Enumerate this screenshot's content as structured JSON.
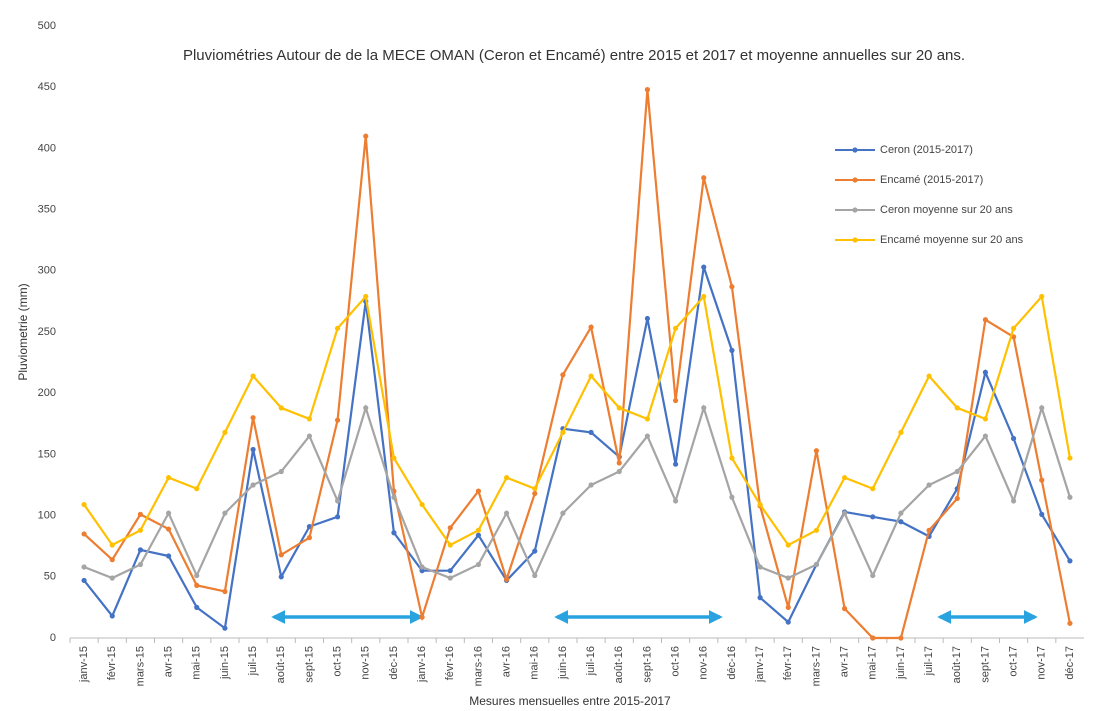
{
  "chart_data": {
    "type": "line",
    "title": "Pluviométries Autour de de la MECE OMAN (Ceron et Encamé) entre 2015 et 2017 et moyenne annuelles sur 20 ans.",
    "x_label": "Mesures mensuelles entre 2015-2017",
    "y_label": "Pluviometrie (mm)",
    "categories": [
      "janv-15",
      "févr-15",
      "mars-15",
      "avr-15",
      "mai-15",
      "juin-15",
      "juil-15",
      "août-15",
      "sept-15",
      "oct-15",
      "nov-15",
      "déc-15",
      "janv-16",
      "févr-16",
      "mars-16",
      "avr-16",
      "mai-16",
      "juin-16",
      "juil-16",
      "août-16",
      "sept-16",
      "oct-16",
      "nov-16",
      "déc-16",
      "janv-17",
      "févr-17",
      "mars-17",
      "avr-17",
      "mai-17",
      "juin-17",
      "juil-17",
      "août-17",
      "sept-17",
      "oct-17",
      "nov-17",
      "déc-17"
    ],
    "series": [
      {
        "name": "Ceron  (2015-2017)",
        "color": "#4472c4",
        "values": [
          47,
          18,
          72,
          67,
          25,
          8,
          154,
          50,
          91,
          99,
          275,
          86,
          55,
          55,
          84,
          47,
          71,
          171,
          168,
          148,
          261,
          142,
          303,
          235,
          33,
          13,
          60,
          103,
          99,
          95,
          83,
          122,
          217,
          163,
          101,
          63
        ]
      },
      {
        "name": "Encamé (2015-2017)",
        "color": "#ed7d31",
        "values": [
          85,
          64,
          101,
          89,
          43,
          38,
          180,
          68,
          82,
          178,
          410,
          120,
          17,
          90,
          120,
          48,
          118,
          215,
          254,
          143,
          448,
          194,
          376,
          287,
          108,
          25,
          153,
          24,
          0,
          0,
          88,
          114,
          260,
          246,
          129,
          12
        ]
      },
      {
        "name": "Ceron moyenne sur 20 ans",
        "color": "#a5a5a5",
        "values": [
          58,
          49,
          60,
          102,
          51,
          102,
          125,
          136,
          165,
          112,
          188,
          115,
          58,
          49,
          60,
          102,
          51,
          102,
          125,
          136,
          165,
          112,
          188,
          115,
          58,
          49,
          60,
          102,
          51,
          102,
          125,
          136,
          165,
          112,
          188,
          115
        ]
      },
      {
        "name": "Encamé moyenne sur 20 ans",
        "color": "#ffc000",
        "values": [
          109,
          76,
          88,
          131,
          122,
          168,
          214,
          188,
          179,
          253,
          279,
          147,
          109,
          76,
          88,
          131,
          122,
          168,
          214,
          188,
          179,
          253,
          279,
          147,
          109,
          76,
          88,
          131,
          122,
          168,
          214,
          188,
          179,
          253,
          279,
          147
        ]
      }
    ],
    "ylim": [
      0,
      500
    ],
    "yticks": [
      0,
      50,
      100,
      150,
      200,
      250,
      300,
      350,
      400,
      450,
      500
    ],
    "grid": false
  }
}
